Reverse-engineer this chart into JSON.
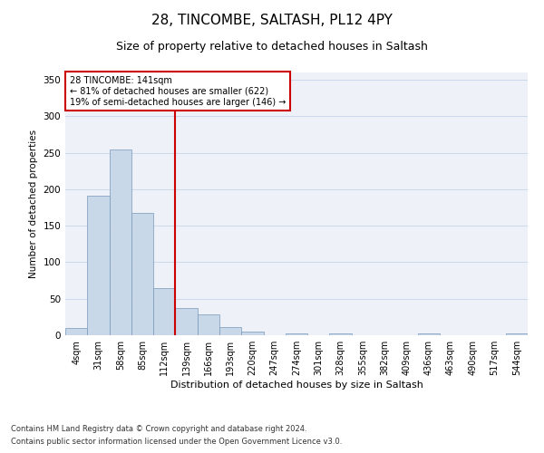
{
  "title1": "28, TINCOMBE, SALTASH, PL12 4PY",
  "title2": "Size of property relative to detached houses in Saltash",
  "xlabel": "Distribution of detached houses by size in Saltash",
  "ylabel": "Number of detached properties",
  "footnote1": "Contains HM Land Registry data © Crown copyright and database right 2024.",
  "footnote2": "Contains public sector information licensed under the Open Government Licence v3.0.",
  "annotation_line1": "28 TINCOMBE: 141sqm",
  "annotation_line2": "← 81% of detached houses are smaller (622)",
  "annotation_line3": "19% of semi-detached houses are larger (146) →",
  "bar_color": "#c8d8e8",
  "bar_edge_color": "#7799bb",
  "vline_color": "#cc0000",
  "categories": [
    "4sqm",
    "31sqm",
    "58sqm",
    "85sqm",
    "112sqm",
    "139sqm",
    "166sqm",
    "193sqm",
    "220sqm",
    "247sqm",
    "274sqm",
    "301sqm",
    "328sqm",
    "355sqm",
    "382sqm",
    "409sqm",
    "436sqm",
    "463sqm",
    "490sqm",
    "517sqm",
    "544sqm"
  ],
  "values": [
    10,
    191,
    255,
    167,
    65,
    37,
    29,
    11,
    5,
    0,
    3,
    0,
    2,
    0,
    0,
    0,
    2,
    0,
    0,
    0,
    3
  ],
  "ylim": [
    0,
    360
  ],
  "yticks": [
    0,
    50,
    100,
    150,
    200,
    250,
    300,
    350
  ],
  "grid_color": "#ccd8ea",
  "ax_background": "#eef2f8",
  "title_fontsize": 11,
  "subtitle_fontsize": 9,
  "xlabel_fontsize": 8,
  "ylabel_fontsize": 7.5,
  "tick_fontsize": 7,
  "annotation_fontsize": 7,
  "footnote_fontsize": 6,
  "box_color": "#cc0000",
  "vline_index": 5
}
